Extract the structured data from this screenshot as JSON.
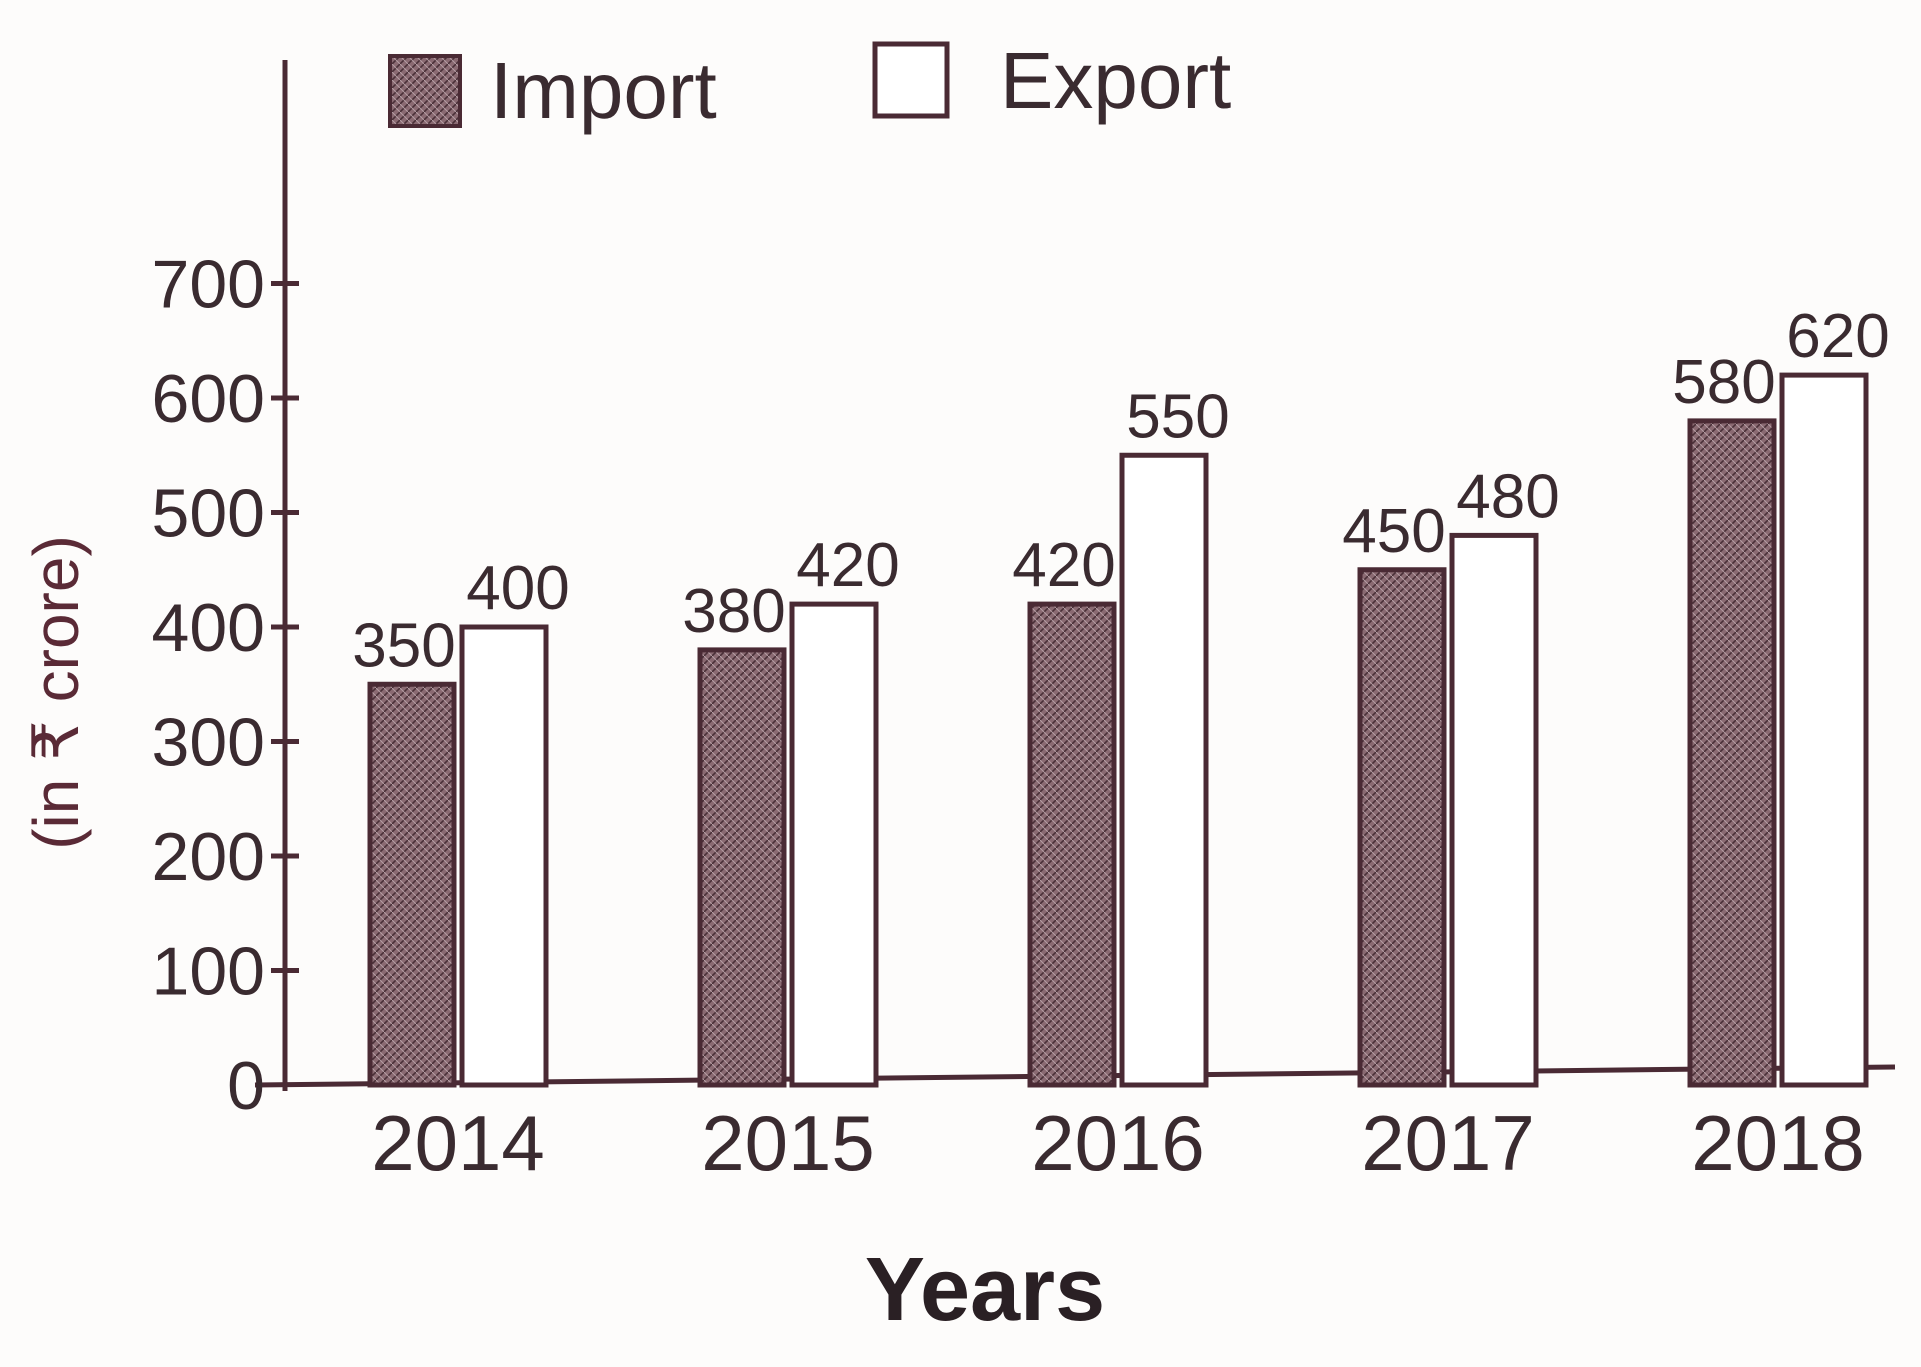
{
  "chart_data": {
    "type": "bar",
    "categories": [
      "2014",
      "2015",
      "2016",
      "2017",
      "2018"
    ],
    "series": [
      {
        "name": "Import",
        "values": [
          350,
          380,
          420,
          450,
          580
        ],
        "color": "#8a6a72"
      },
      {
        "name": "Export",
        "values": [
          400,
          420,
          550,
          480,
          620
        ],
        "color": "#ffffff"
      }
    ],
    "data_labels": {
      "Import": [
        "350",
        "380",
        "420",
        "450",
        "580"
      ],
      "Export": [
        "400",
        "420",
        "550",
        "480",
        "620"
      ]
    },
    "title": "",
    "xlabel": "Years",
    "ylabel": "(in ₹ crore)",
    "ylim": [
      0,
      700
    ],
    "yticks": [
      0,
      100,
      200,
      300,
      400,
      500,
      600,
      700
    ],
    "grid": false,
    "legend_position": "top",
    "colors": {
      "axis": "#4a2a34",
      "text": "#3a2b30",
      "import_fill": "#8a6a72",
      "export_fill": "#ffffff"
    }
  }
}
